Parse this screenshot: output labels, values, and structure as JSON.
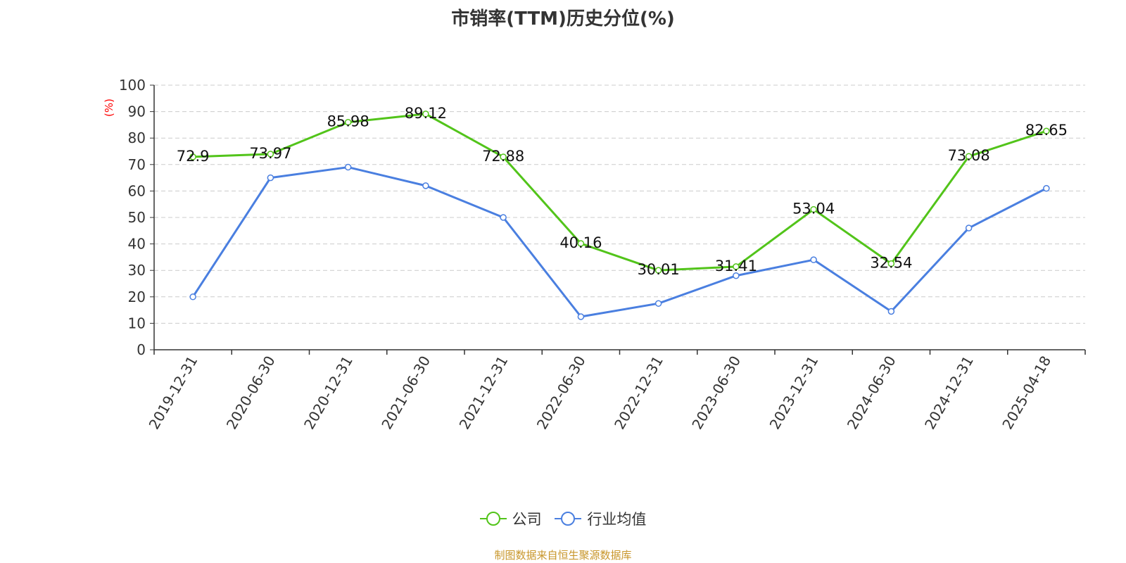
{
  "title": "市销率(TTM)历史分位(%)",
  "source_text": "制图数据来自恒生聚源数据库",
  "colors": {
    "company": "#52c41a",
    "industry": "#4a7fe0",
    "ylabel": "#ff0000",
    "source": "#c8962a",
    "grid": "#cccccc",
    "axis": "#333333"
  },
  "chart_data": {
    "type": "line",
    "title": "市销率(TTM)历史分位(%)",
    "xlabel": "",
    "ylabel": "(%)",
    "ylim": [
      0,
      100
    ],
    "yticks": [
      0,
      10,
      20,
      30,
      40,
      50,
      60,
      70,
      80,
      90,
      100
    ],
    "grid": true,
    "legend_position": "bottom",
    "categories": [
      "2019-12-31",
      "2020-06-30",
      "2020-12-31",
      "2021-06-30",
      "2021-12-31",
      "2022-06-30",
      "2022-12-31",
      "2023-06-30",
      "2023-12-31",
      "2024-06-30",
      "2024-12-31",
      "2025-04-18"
    ],
    "series": [
      {
        "name": "公司",
        "values": [
          72.9,
          73.97,
          85.98,
          89.12,
          72.88,
          40.16,
          30.01,
          31.41,
          53.04,
          32.54,
          73.08,
          82.65
        ],
        "data_labels": [
          "72.9",
          "73.97",
          "85.98",
          "89.12",
          "72.88",
          "40.16",
          "30.01",
          "31.41",
          "53.04",
          "32.54",
          "73.08",
          "82.65"
        ]
      },
      {
        "name": "行业均值",
        "values": [
          20,
          65,
          69,
          62,
          50,
          12.5,
          17.5,
          28,
          34,
          14.5,
          46,
          61
        ]
      }
    ]
  }
}
